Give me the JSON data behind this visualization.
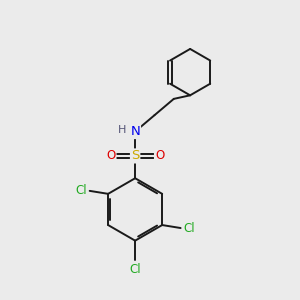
{
  "bg_color": "#ebebeb",
  "bond_color": "#1a1a1a",
  "bond_width": 1.4,
  "atom_colors": {
    "S": "#ccaa00",
    "N": "#0000ee",
    "O": "#dd0000",
    "Cl": "#22aa22",
    "H": "#555577",
    "C": "#1a1a1a"
  },
  "font_size": 8.5,
  "fig_size": [
    3.0,
    3.0
  ],
  "dpi": 100
}
